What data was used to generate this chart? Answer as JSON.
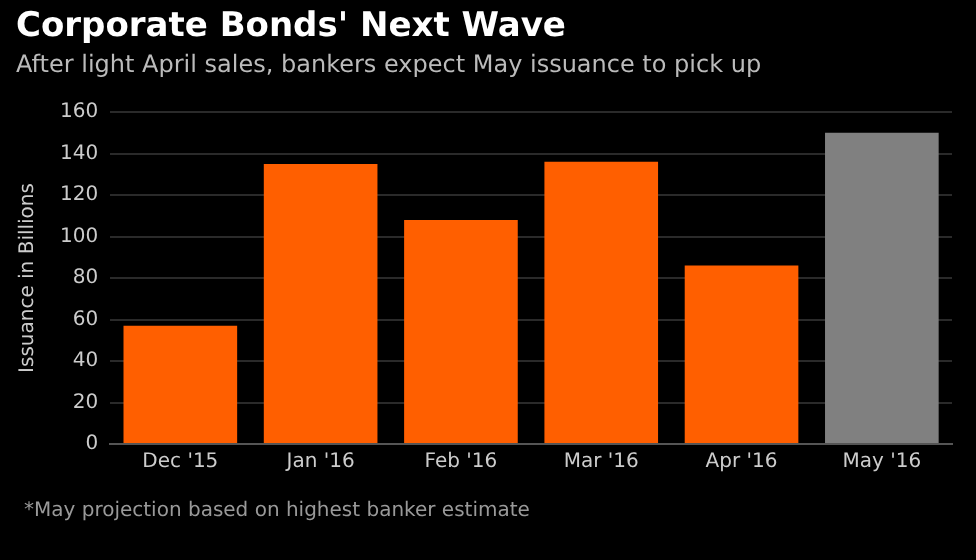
{
  "chart_data": {
    "type": "bar",
    "title": "Corporate Bonds' Next Wave",
    "subtitle": "After light April sales, bankers expect May issuance to pick up",
    "ylabel": "Issuance in Billions",
    "categories": [
      "Dec '15",
      "Jan '16",
      "Feb '16",
      "Mar '16",
      "Apr '16",
      "May '16"
    ],
    "values": [
      57,
      135,
      108,
      136,
      86,
      150
    ],
    "colors": [
      "#ff5f00",
      "#ff5f00",
      "#ff5f00",
      "#ff5f00",
      "#ff5f00",
      "#808080"
    ],
    "ylim": [
      0,
      160
    ],
    "yticks": [
      0,
      20,
      40,
      60,
      80,
      100,
      120,
      140,
      160
    ],
    "grid": "y",
    "annotations": [
      "*May projection based on highest banker estimate"
    ]
  }
}
